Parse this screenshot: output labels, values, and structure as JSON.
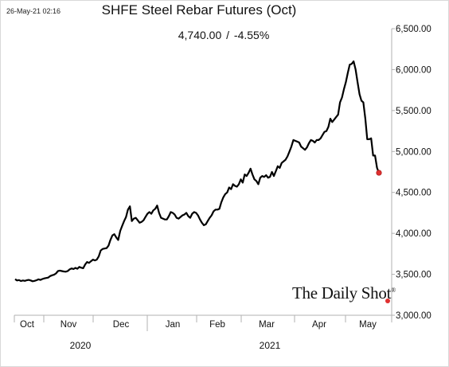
{
  "header": {
    "timestamp": "26-May-21 02:16",
    "title": "SHFE Steel Rebar Futures (Oct)",
    "last_value": "4,740.00",
    "separator": "/",
    "change": "-4.55%"
  },
  "watermark": {
    "text": "The Daily Shot",
    "mark": "®"
  },
  "colors": {
    "line": "#000000",
    "last_point": "#e03030",
    "axis": "#b0b0b0"
  },
  "chart_data": {
    "type": "line",
    "title": "SHFE Steel Rebar Futures (Oct)",
    "ylim": [
      3000,
      6500
    ],
    "y_ticks": [
      "3,000.00",
      "3,500.00",
      "4,000.00",
      "4,500.00",
      "5,000.00",
      "5,500.00",
      "6,000.00",
      "6,500.00"
    ],
    "y_axis_side": "right",
    "x_month_labels": [
      "Oct",
      "Nov",
      "Dec",
      "Jan",
      "Feb",
      "Mar",
      "Apr",
      "May"
    ],
    "x_year_labels": [
      "2020",
      "2021"
    ],
    "grid": false,
    "series": [
      {
        "values": [
          3440,
          3425,
          3430,
          3418,
          3425,
          3420,
          3428,
          3432,
          3425,
          3415,
          3420,
          3428,
          3438,
          3432,
          3442,
          3450,
          3455,
          3460,
          3478,
          3488,
          3495,
          3510,
          3540,
          3545,
          3540,
          3535,
          3532,
          3540,
          3560,
          3572,
          3565,
          3578,
          3568,
          3590,
          3580,
          3575,
          3620,
          3650,
          3640,
          3660,
          3680,
          3670,
          3680,
          3720,
          3790,
          3810,
          3815,
          3820,
          3850,
          3920,
          3975,
          3990,
          3950,
          3920,
          4030,
          4090,
          4150,
          4200,
          4290,
          4330,
          4150,
          4180,
          4190,
          4160,
          4130,
          4140,
          4160,
          4200,
          4240,
          4260,
          4240,
          4280,
          4300,
          4340,
          4250,
          4190,
          4180,
          4170,
          4170,
          4210,
          4260,
          4250,
          4230,
          4190,
          4180,
          4200,
          4220,
          4230,
          4250,
          4210,
          4190,
          4240,
          4260,
          4250,
          4220,
          4170,
          4130,
          4100,
          4110,
          4150,
          4190,
          4220,
          4270,
          4290,
          4290,
          4300,
          4380,
          4440,
          4480,
          4500,
          4560,
          4540,
          4600,
          4580,
          4570,
          4600,
          4660,
          4620,
          4720,
          4700,
          4740,
          4790,
          4720,
          4660,
          4640,
          4600,
          4680,
          4700,
          4690,
          4710,
          4680,
          4690,
          4750,
          4700,
          4760,
          4820,
          4800,
          4860,
          4880,
          4900,
          4940,
          5000,
          5060,
          5140,
          5130,
          5120,
          5110,
          5060,
          5040,
          5020,
          5050,
          5100,
          5140,
          5130,
          5110,
          5140,
          5140,
          5160,
          5200,
          5240,
          5250,
          5300,
          5400,
          5360,
          5390,
          5420,
          5450,
          5600,
          5660,
          5760,
          5850,
          5960,
          6060,
          6070,
          6100,
          6000,
          5850,
          5700,
          5620,
          5600,
          5400,
          5150,
          5150,
          5160,
          4950,
          4950,
          4800,
          4740
        ]
      }
    ],
    "last_value": 4740
  }
}
